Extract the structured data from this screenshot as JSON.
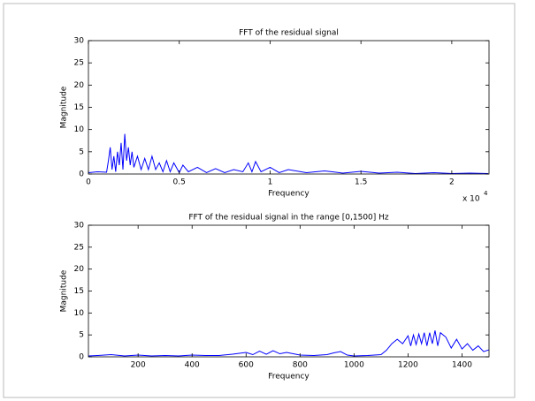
{
  "chart_data": [
    {
      "type": "line",
      "title": "FFT of the residual signal",
      "x_label": "Frequency",
      "y_label": "Magnitude",
      "x_multiplier": {
        "base": "x 10",
        "exponent": "4"
      },
      "xlim": [
        0,
        2.205
      ],
      "xticks": [
        0,
        0.5,
        1,
        1.5,
        2
      ],
      "ylim": [
        0,
        30
      ],
      "yticks": [
        0,
        5,
        10,
        15,
        20,
        25,
        30
      ],
      "series": [
        {
          "color": "#0000ff",
          "x": [
            0,
            0.05,
            0.1,
            0.11,
            0.12,
            0.13,
            0.14,
            0.15,
            0.16,
            0.17,
            0.18,
            0.19,
            0.2,
            0.21,
            0.22,
            0.23,
            0.24,
            0.25,
            0.27,
            0.29,
            0.31,
            0.33,
            0.35,
            0.37,
            0.39,
            0.41,
            0.43,
            0.45,
            0.47,
            0.5,
            0.52,
            0.55,
            0.6,
            0.65,
            0.7,
            0.75,
            0.8,
            0.85,
            0.88,
            0.9,
            0.92,
            0.95,
            1.0,
            1.05,
            1.1,
            1.2,
            1.3,
            1.4,
            1.5,
            1.6,
            1.7,
            1.8,
            1.9,
            2.0,
            2.1,
            2.2
          ],
          "values": [
            0.3,
            0.5,
            0.4,
            3,
            6,
            1,
            4,
            0.5,
            5,
            2,
            7,
            1,
            9,
            3,
            6,
            2,
            5,
            1.5,
            4,
            1,
            3.5,
            1,
            4,
            1,
            2.5,
            0.5,
            3,
            0.5,
            2.5,
            0.3,
            2,
            0.5,
            1.5,
            0.3,
            1.2,
            0.3,
            1,
            0.5,
            2.5,
            0.5,
            2.8,
            0.5,
            1.5,
            0.3,
            1,
            0.3,
            0.7,
            0.2,
            0.6,
            0.2,
            0.4,
            0.1,
            0.3,
            0.1,
            0.2,
            0.1
          ]
        }
      ]
    },
    {
      "type": "line",
      "title": "FFT of the residual signal in the range [0,1500] Hz",
      "x_label": "Frequency",
      "y_label": "Magnitude",
      "xlim": [
        16,
        1500
      ],
      "xticks": [
        200,
        400,
        600,
        800,
        1000,
        1200,
        1400
      ],
      "ylim": [
        0,
        30
      ],
      "yticks": [
        0,
        5,
        10,
        15,
        20,
        25,
        30
      ],
      "series": [
        {
          "color": "#0000ff",
          "x": [
            16,
            50,
            100,
            150,
            200,
            250,
            300,
            350,
            400,
            450,
            500,
            550,
            600,
            625,
            650,
            675,
            700,
            725,
            750,
            800,
            850,
            900,
            925,
            950,
            975,
            1000,
            1050,
            1100,
            1120,
            1140,
            1160,
            1180,
            1200,
            1210,
            1220,
            1230,
            1240,
            1250,
            1260,
            1270,
            1280,
            1290,
            1300,
            1310,
            1320,
            1340,
            1360,
            1380,
            1400,
            1420,
            1440,
            1460,
            1480,
            1500
          ],
          "values": [
            0.2,
            0.3,
            0.5,
            0.2,
            0.4,
            0.2,
            0.3,
            0.2,
            0.4,
            0.3,
            0.3,
            0.6,
            1,
            0.5,
            1.3,
            0.6,
            1.4,
            0.7,
            1,
            0.4,
            0.3,
            0.5,
            0.9,
            1.2,
            0.4,
            0.2,
            0.3,
            0.5,
            1.5,
            3,
            4,
            3,
            4.8,
            2.5,
            5,
            2.8,
            5.2,
            3,
            5.5,
            2.5,
            5.5,
            3,
            6,
            2.5,
            5.5,
            4.5,
            2,
            4,
            1.8,
            3,
            1.5,
            2.5,
            1.2,
            1.6
          ]
        }
      ]
    }
  ]
}
